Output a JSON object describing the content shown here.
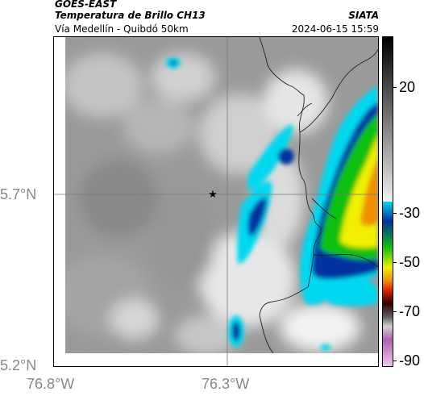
{
  "header": {
    "satellite": "GOES-EAST",
    "product": "Temperatura de Brillo CH13",
    "route": "Vía Medellín - Quibdó 50km",
    "organization": "SIATA",
    "datetime": "2024-06-15 15:59"
  },
  "axes": {
    "lat_labels": [
      "5.7°N",
      "5.2°N"
    ],
    "lon_labels": [
      "76.8°W",
      "76.3°W"
    ]
  },
  "colorbar": {
    "labels": [
      "20",
      "-30",
      "-50",
      "-70",
      "-90"
    ],
    "colors": {
      "warm_top": "#000000",
      "warm_mid": "#909090",
      "cold_cyan": "#00d8f0",
      "cold_blue": "#0030a0",
      "cold_green": "#10c010",
      "cold_yellow": "#f0f000",
      "cold_orange": "#f09000",
      "cold_red": "#e02000",
      "cold_dark": "#300000",
      "cold_magenta": "#b060b0"
    }
  },
  "map": {
    "marker_icon": "star-icon",
    "marker_symbol": "★"
  }
}
